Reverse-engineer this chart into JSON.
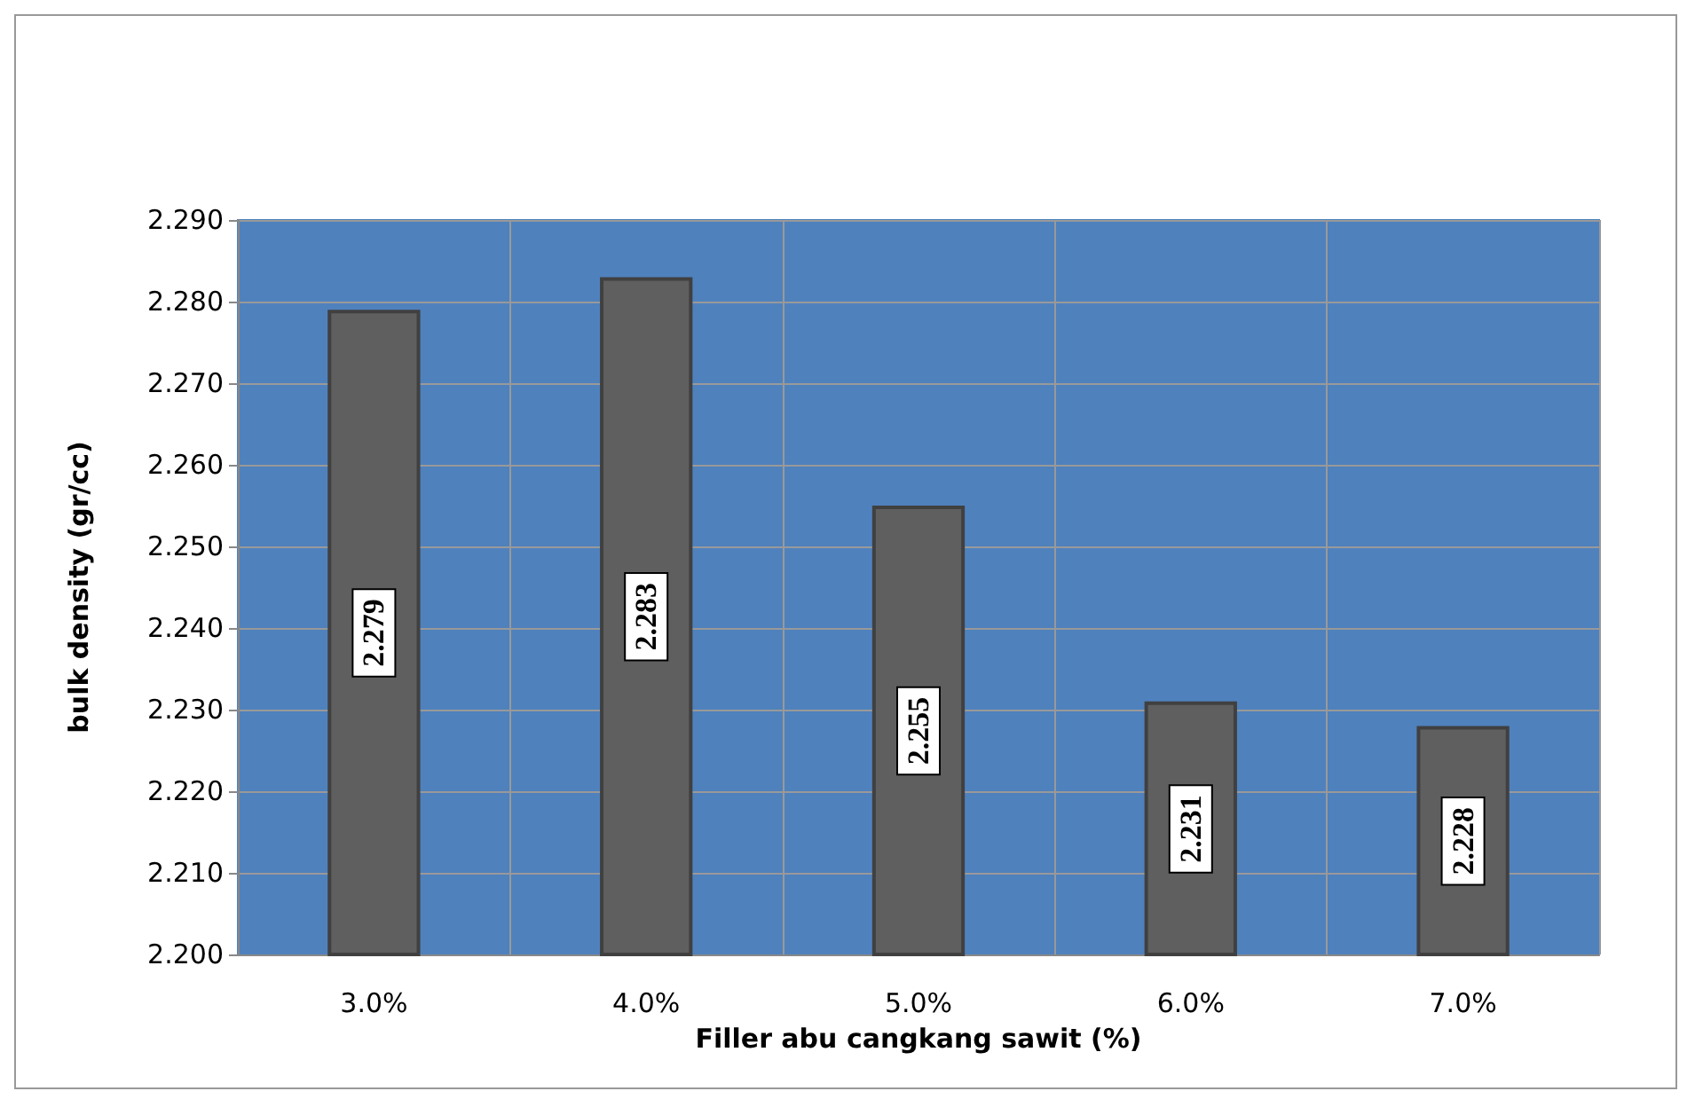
{
  "chart_data": {
    "type": "bar",
    "xlabel": "Filler abu cangkang sawit (%)",
    "ylabel": "bulk density (gr/cc)",
    "categories": [
      "3.0%",
      "4.0%",
      "5.0%",
      "6.0%",
      "7.0%"
    ],
    "values": [
      2.279,
      2.283,
      2.255,
      2.231,
      2.228
    ],
    "color": "#5f5f5f",
    "ylim": [
      2.2,
      2.29
    ],
    "yticks": [
      {
        "value": 2.2,
        "label": "2.200"
      },
      {
        "value": 2.21,
        "label": "2.210"
      },
      {
        "value": 2.22,
        "label": "2.220"
      },
      {
        "value": 2.23,
        "label": "2.230"
      },
      {
        "value": 2.24,
        "label": "2.240"
      },
      {
        "value": 2.25,
        "label": "2.250"
      },
      {
        "value": 2.26,
        "label": "2.260"
      },
      {
        "value": 2.27,
        "label": "2.270"
      },
      {
        "value": 2.28,
        "label": "2.280"
      },
      {
        "value": 2.29,
        "label": "2.290"
      }
    ],
    "grid": true,
    "data_labels": true
  }
}
